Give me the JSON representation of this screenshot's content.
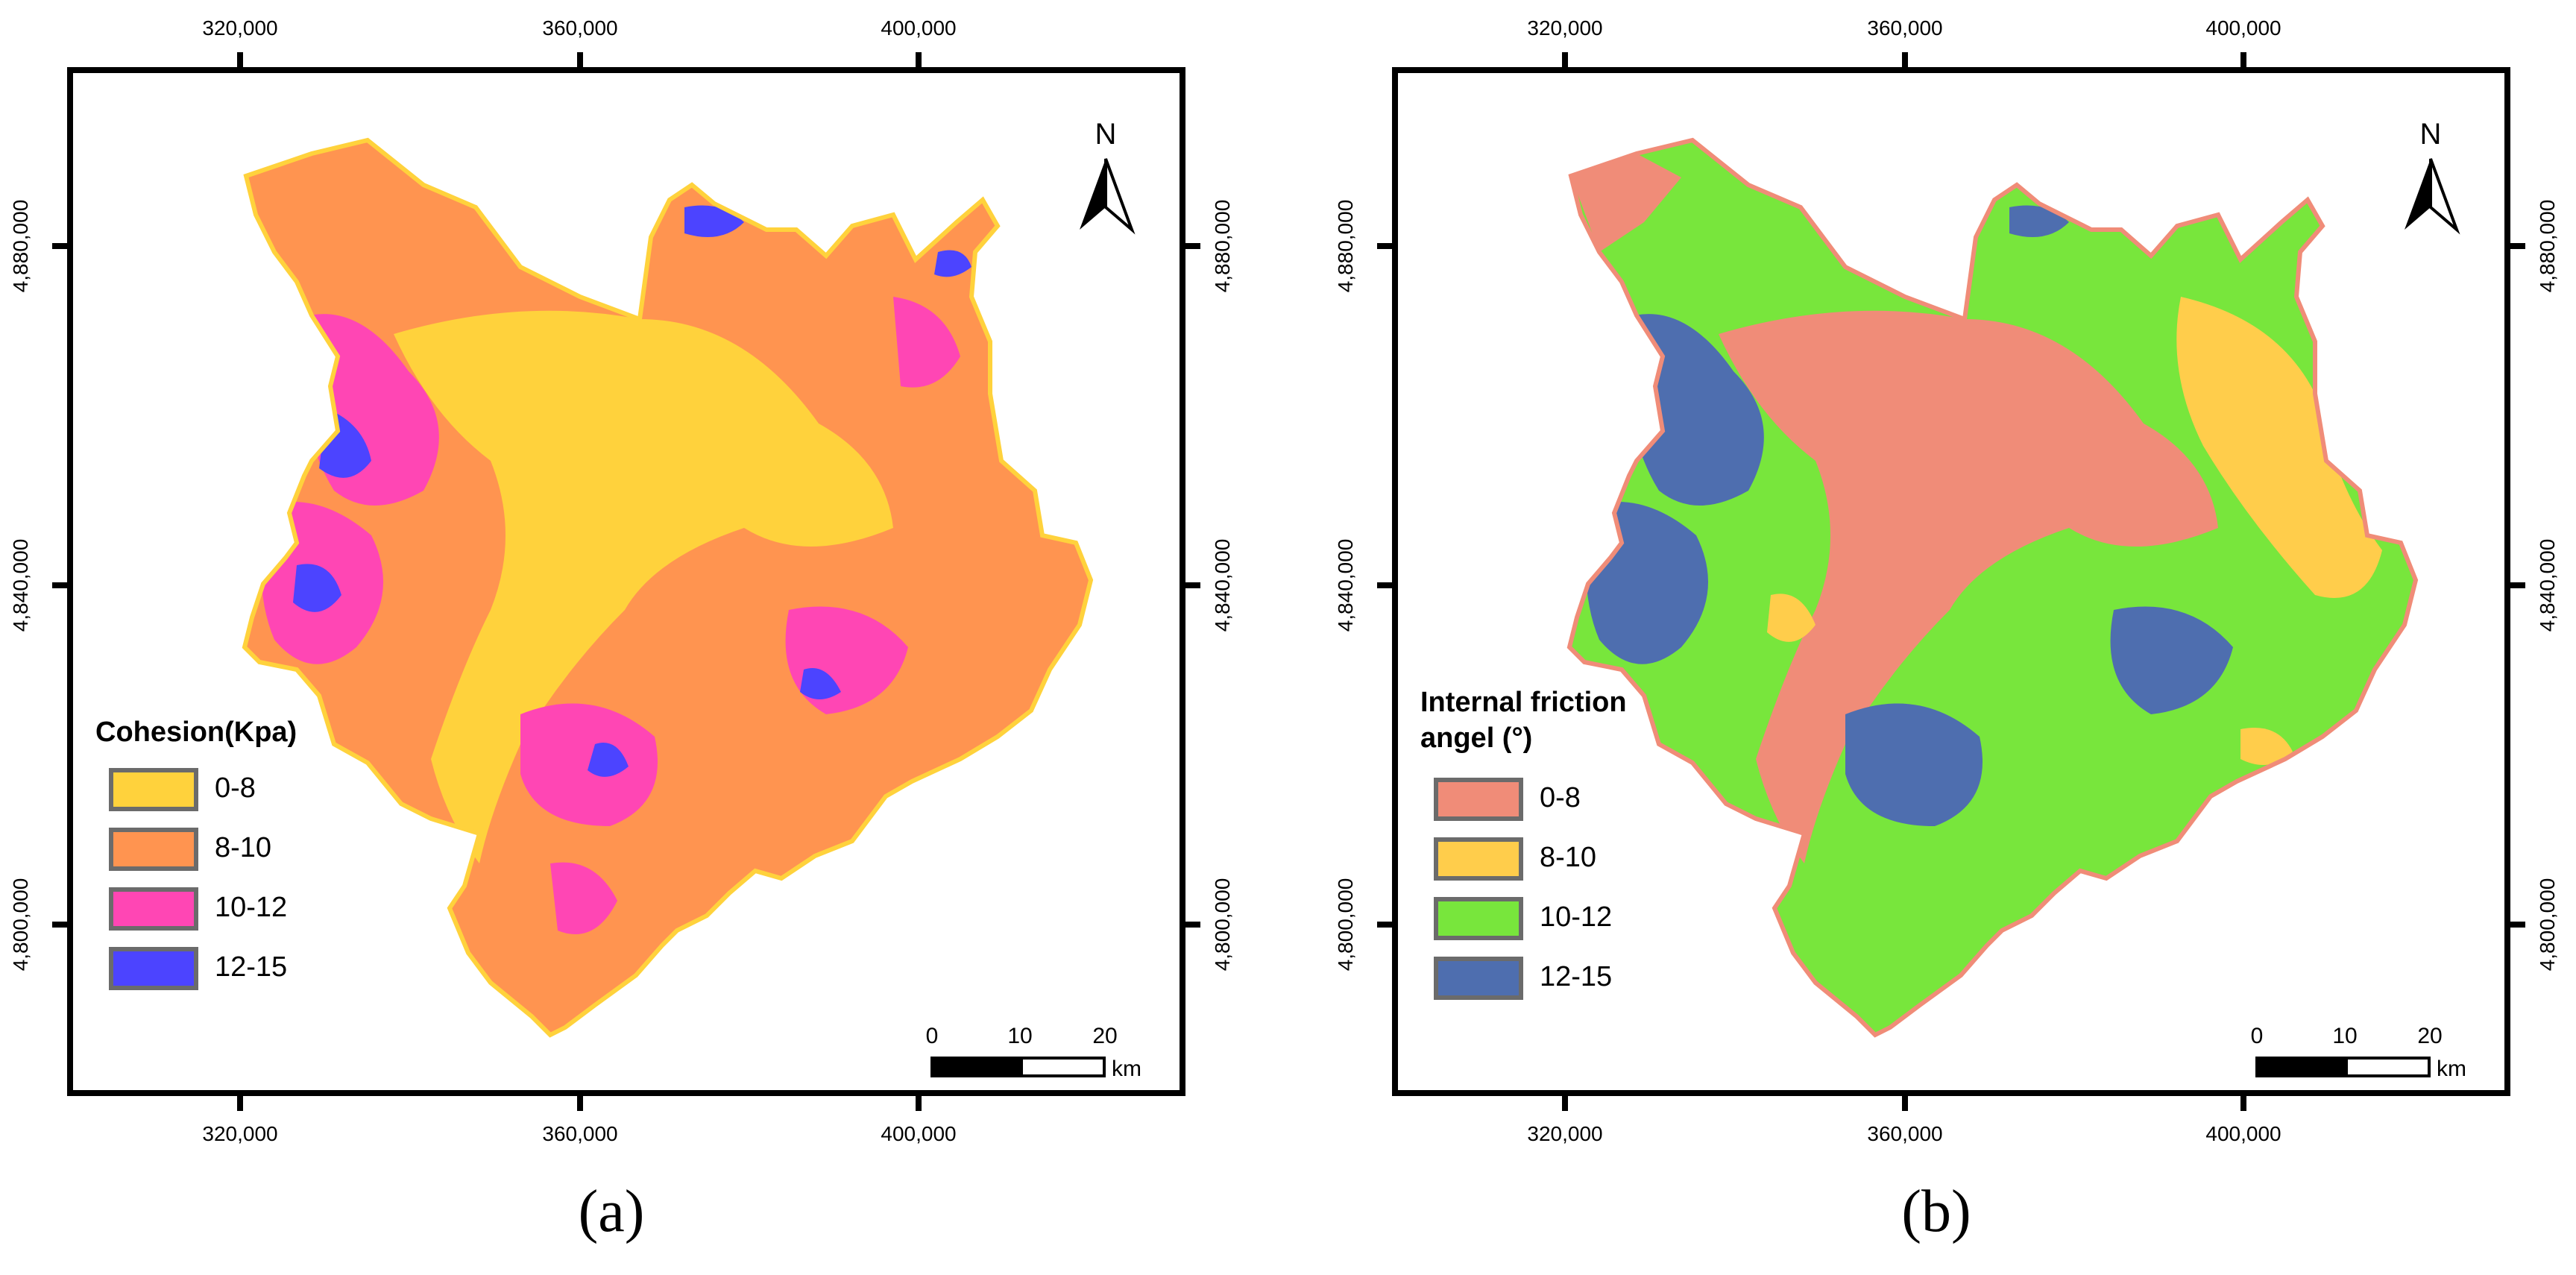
{
  "coordinate_labels": {
    "easting": [
      "320,000",
      "360,000",
      "400,000"
    ],
    "northing": [
      "4,880,000",
      "4,840,000",
      "4,800,000"
    ]
  },
  "scale_bar": {
    "ticks": [
      "0",
      "10",
      "20"
    ],
    "unit": "km"
  },
  "north_arrow": {
    "letter": "N"
  },
  "colors": {
    "cohesion": [
      "#ffd23c",
      "#ff9450",
      "#ff46b4",
      "#4c44ff"
    ],
    "friction": [
      "#f08c78",
      "#ffcd4b",
      "#78e63c",
      "#4e6eaf"
    ]
  },
  "panels": [
    {
      "id": "a",
      "label": "(a)",
      "legend": {
        "title": "Cohesion(Kpa)",
        "items": [
          {
            "label": "0-8",
            "color": "#ffd23c"
          },
          {
            "label": "8-10",
            "color": "#ff9450"
          },
          {
            "label": "10-12",
            "color": "#ff46b4"
          },
          {
            "label": "12-15",
            "color": "#4c44ff"
          }
        ]
      }
    },
    {
      "id": "b",
      "label": "(b)",
      "legend": {
        "title_line1": "Internal friction",
        "title_line2": "angel (°)",
        "items": [
          {
            "label": "0-8",
            "color": "#f08c78"
          },
          {
            "label": "8-10",
            "color": "#ffcd4b"
          },
          {
            "label": "10-12",
            "color": "#78e63c"
          },
          {
            "label": "12-15",
            "color": "#4e6eaf"
          }
        ]
      }
    }
  ]
}
